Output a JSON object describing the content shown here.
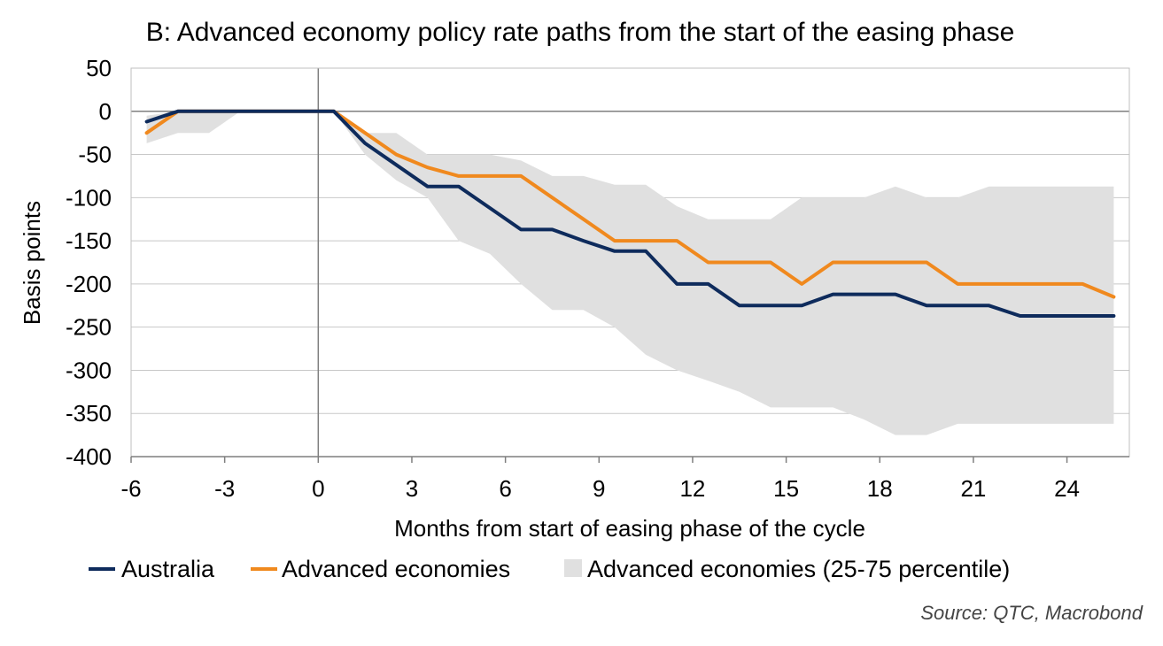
{
  "chart_data": {
    "type": "line",
    "title": "B: Advanced economy policy rate paths from the start of the easing phase",
    "xlabel": "Months from start of easing phase of the cycle",
    "ylabel": "Basis points",
    "xlim": [
      -6,
      26
    ],
    "ylim": [
      -400,
      50
    ],
    "xticks": [
      -6,
      -3,
      0,
      3,
      6,
      9,
      12,
      15,
      18,
      21,
      24
    ],
    "yticks": [
      50,
      0,
      -50,
      -100,
      -150,
      -200,
      -250,
      -300,
      -350,
      -400
    ],
    "grid": "horizontal",
    "legend_position": "bottom",
    "colors": {
      "australia": "#0e2b5c",
      "advanced": "#f0891e",
      "band": "#e0e0e0",
      "grid": "#c8c8c8",
      "zero_line": "#7f7f7f",
      "frame": "#bfbfbf"
    },
    "series": [
      {
        "name": "Australia",
        "color": "#0e2b5c",
        "x": [
          -5.5,
          -4.5,
          -3.5,
          -2.5,
          -1.5,
          -0.5,
          0.5,
          1.5,
          2.5,
          3.5,
          4.5,
          5.5,
          6.5,
          7.5,
          8.5,
          9.5,
          10.5,
          11.5,
          12.5,
          13.5,
          14.5,
          15.5,
          16.5,
          17.5,
          18.5,
          19.5,
          20.5,
          21.5,
          22.5,
          23.5,
          24.5,
          25.5
        ],
        "values": [
          -12,
          0,
          0,
          0,
          0,
          0,
          0,
          -37,
          -62,
          -87,
          -87,
          -112,
          -137,
          -137,
          -150,
          -162,
          -162,
          -200,
          -200,
          -225,
          -225,
          -225,
          -212,
          -212,
          -212,
          -225,
          -225,
          -225,
          -237,
          -237,
          -237,
          -237
        ]
      },
      {
        "name": "Advanced economies",
        "color": "#f0891e",
        "x": [
          -5.5,
          -4.5,
          -3.5,
          -2.5,
          -1.5,
          -0.5,
          0.5,
          1.5,
          2.5,
          3.5,
          4.5,
          5.5,
          6.5,
          7.5,
          8.5,
          9.5,
          10.5,
          11.5,
          12.5,
          13.5,
          14.5,
          15.5,
          16.5,
          17.5,
          18.5,
          19.5,
          20.5,
          21.5,
          22.5,
          23.5,
          24.5,
          25.5
        ],
        "values": [
          -25,
          0,
          0,
          0,
          0,
          0,
          0,
          -25,
          -50,
          -65,
          -75,
          -75,
          -75,
          -100,
          -125,
          -150,
          -150,
          -150,
          -175,
          -175,
          -175,
          -200,
          -175,
          -175,
          -175,
          -175,
          -200,
          -200,
          -200,
          -200,
          -200,
          -215
        ]
      }
    ],
    "band": {
      "name": "Advanced economies (25-75 percentile)",
      "color": "#e0e0e0",
      "x": [
        -5.5,
        -4.5,
        -3.5,
        -2.5,
        -1.5,
        -0.5,
        0.5,
        1.5,
        2.5,
        3.5,
        4.5,
        5.5,
        6.5,
        7.5,
        8.5,
        9.5,
        10.5,
        11.5,
        12.5,
        13.5,
        14.5,
        15.5,
        16.5,
        17.5,
        18.5,
        19.5,
        20.5,
        21.5,
        22.5,
        23.5,
        24.5,
        25.5
      ],
      "upper": [
        -5,
        0,
        0,
        0,
        0,
        0,
        0,
        -25,
        -25,
        -50,
        -50,
        -50,
        -57,
        -75,
        -75,
        -85,
        -85,
        -110,
        -125,
        -125,
        -125,
        -100,
        -100,
        -100,
        -87,
        -100,
        -100,
        -87,
        -87,
        -87,
        -87,
        -87
      ],
      "lower": [
        -37,
        -25,
        -25,
        0,
        0,
        0,
        0,
        -50,
        -80,
        -100,
        -150,
        -165,
        -200,
        -230,
        -230,
        -250,
        -282,
        -300,
        -312,
        -325,
        -343,
        -343,
        -343,
        -357,
        -375,
        -375,
        -362,
        -362,
        -362,
        -362,
        -362,
        -362
      ]
    },
    "legend": [
      {
        "label": "Australia",
        "kind": "line",
        "color": "#0e2b5c"
      },
      {
        "label": "Advanced economies",
        "kind": "line",
        "color": "#f0891e"
      },
      {
        "label": "Advanced economies (25-75 percentile)",
        "kind": "area",
        "color": "#e0e0e0"
      }
    ],
    "source": "Source: QTC, Macrobond"
  }
}
